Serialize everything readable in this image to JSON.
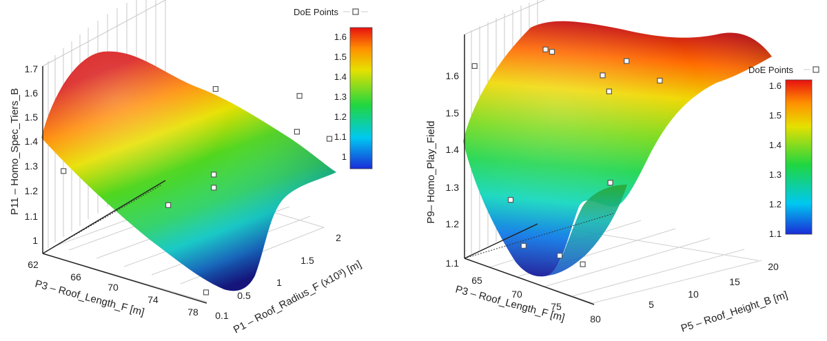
{
  "chart_data": [
    {
      "type": "surface3d",
      "title": "",
      "zlabel": "P11 – Homo_Spec_Tiers_B",
      "xlabel": "P3 – Roof_Length_F [m]",
      "ylabel": "P1 – Roof_Radius_F (x10³) [m]",
      "x_ticks": [
        "62",
        "66",
        "70",
        "74",
        "78"
      ],
      "y_ticks": [
        "0.1",
        "0.5",
        "1",
        "1.5",
        "2"
      ],
      "z_ticks": [
        "1",
        "1.1",
        "1.2",
        "1.3",
        "1.4",
        "1.5",
        "1.6",
        "1.7"
      ],
      "xlim": [
        62,
        80
      ],
      "ylim": [
        0.1,
        2.2
      ],
      "zlim": [
        1.0,
        1.7
      ],
      "colorbar": {
        "ticks": [
          "1",
          "1.1",
          "1.2",
          "1.3",
          "1.4",
          "1.5",
          "1.6"
        ],
        "range": [
          0.95,
          1.65
        ]
      },
      "legend": {
        "label": "DoE Points",
        "position": "top-right"
      },
      "surface_edges": [
        {
          "x": 62,
          "y": 0.1,
          "z": 1.42
        },
        {
          "x": 62,
          "y": 2.2,
          "z": 1.68
        },
        {
          "x": 80,
          "y": 2.2,
          "z": 1.32
        },
        {
          "x": 80,
          "y": 0.1,
          "z": 0.96
        }
      ],
      "doe_points": [
        {
          "x": 64,
          "y": 2.0,
          "z": 1.8
        },
        {
          "x": 72,
          "y": 1.5,
          "z": 1.55
        },
        {
          "x": 78,
          "y": 2.0,
          "z": 1.52
        },
        {
          "x": 63,
          "y": 0.3,
          "z": 1.3
        },
        {
          "x": 75,
          "y": 1.0,
          "z": 1.32
        },
        {
          "x": 75,
          "y": 1.0,
          "z": 1.27
        },
        {
          "x": 70,
          "y": 1.0,
          "z": 1.15
        },
        {
          "x": 79,
          "y": 1.8,
          "z": 1.42
        },
        {
          "x": 80,
          "y": 2.2,
          "z": 1.35
        },
        {
          "x": 78,
          "y": 0.4,
          "z": 0.98
        }
      ]
    },
    {
      "type": "surface3d",
      "title": "",
      "zlabel": "P9– Homo_Play_Field",
      "xlabel": "P3 – Roof_Length_F [m]",
      "ylabel": "P5 – Roof_Height_B [m]",
      "x_ticks": [
        "65",
        "70",
        "75",
        "80"
      ],
      "y_ticks": [
        "5",
        "10",
        "15",
        "20"
      ],
      "z_ticks": [
        "1.1",
        "1.2",
        "1.3",
        "1.4",
        "1.5",
        "1.6"
      ],
      "xlim": [
        62,
        82
      ],
      "ylim": [
        2,
        22
      ],
      "zlim": [
        1.1,
        1.7
      ],
      "colorbar": {
        "ticks": [
          "1.1",
          "1.2",
          "1.3",
          "1.4",
          "1.5",
          "1.6"
        ],
        "range": [
          1.1,
          1.68
        ]
      },
      "legend": {
        "label": "DoE Points",
        "position": "top-right"
      },
      "surface_edges": [
        {
          "x": 62,
          "y": 2,
          "z": 1.42
        },
        {
          "x": 72,
          "y": 2,
          "z": 1.1
        },
        {
          "x": 82,
          "y": 2,
          "z": 1.12
        },
        {
          "x": 72,
          "y": 22,
          "z": 1.68
        },
        {
          "x": 82,
          "y": 22,
          "z": 1.62
        }
      ],
      "doe_points": [
        {
          "x": 63,
          "y": 3,
          "z": 1.66
        },
        {
          "x": 68,
          "y": 4,
          "z": 1.3
        },
        {
          "x": 70,
          "y": 10,
          "z": 1.72
        },
        {
          "x": 71,
          "y": 10,
          "z": 1.72
        },
        {
          "x": 76,
          "y": 15,
          "z": 1.66
        },
        {
          "x": 78,
          "y": 18,
          "z": 1.7
        },
        {
          "x": 77,
          "y": 15,
          "z": 1.62
        },
        {
          "x": 82,
          "y": 20,
          "z": 1.66
        },
        {
          "x": 80,
          "y": 10,
          "z": 1.4
        },
        {
          "x": 70,
          "y": 4,
          "z": 1.18
        },
        {
          "x": 75,
          "y": 5,
          "z": 1.18
        },
        {
          "x": 78,
          "y": 6,
          "z": 1.17
        }
      ]
    }
  ]
}
